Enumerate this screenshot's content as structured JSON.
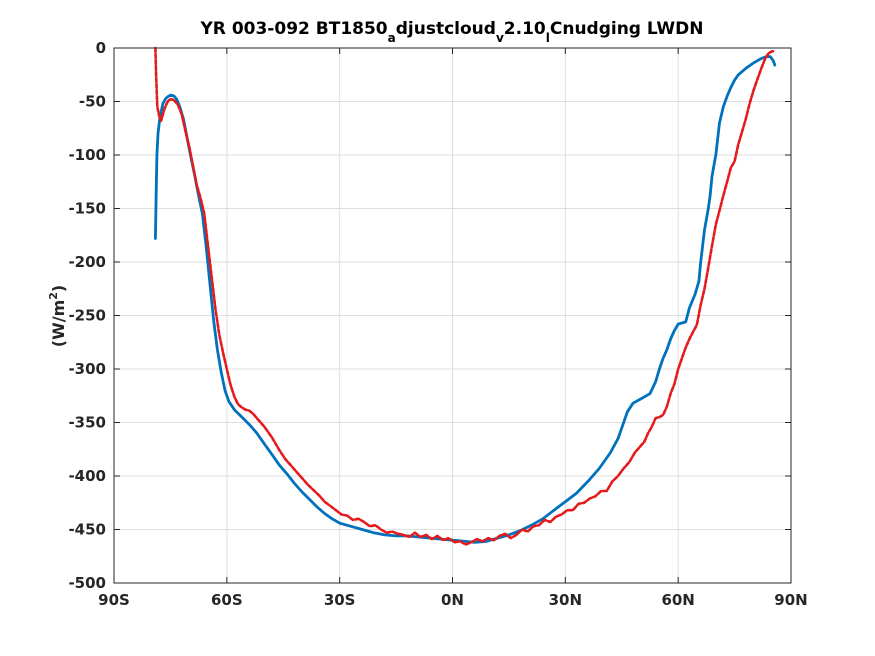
{
  "chart_data": {
    "type": "line",
    "title": {
      "parts": [
        {
          "text": "YR 003-092 BT1850",
          "sub": false
        },
        {
          "text": "a",
          "sub": true
        },
        {
          "text": "djustcloud",
          "sub": false
        },
        {
          "text": "v",
          "sub": true
        },
        {
          "text": "2.10",
          "sub": false
        },
        {
          "text": "l",
          "sub": true
        },
        {
          "text": "Cnudging LWDN",
          "sub": false
        }
      ]
    },
    "xlabel": "",
    "ylabel": {
      "base": "(W/m",
      "sup": "2",
      "close": ")"
    },
    "xlim": [
      -90,
      90
    ],
    "ylim": [
      -500,
      0
    ],
    "xticks": [
      {
        "value": -90,
        "label": "90S"
      },
      {
        "value": -60,
        "label": "60S"
      },
      {
        "value": -30,
        "label": "30S"
      },
      {
        "value": 0,
        "label": "0N"
      },
      {
        "value": 30,
        "label": "30N"
      },
      {
        "value": 60,
        "label": "60N"
      },
      {
        "value": 90,
        "label": "90N"
      }
    ],
    "yticks": [
      {
        "value": 0,
        "label": "0"
      },
      {
        "value": -50,
        "label": "-50"
      },
      {
        "value": -100,
        "label": "-100"
      },
      {
        "value": -150,
        "label": "-150"
      },
      {
        "value": -200,
        "label": "-200"
      },
      {
        "value": -250,
        "label": "-250"
      },
      {
        "value": -300,
        "label": "-300"
      },
      {
        "value": -350,
        "label": "-350"
      },
      {
        "value": -400,
        "label": "-400"
      },
      {
        "value": -450,
        "label": "-450"
      },
      {
        "value": -500,
        "label": "-500"
      }
    ],
    "grid": true,
    "series": [
      {
        "color": "#0072bd",
        "style": "solid",
        "x": [
          -79.0,
          -78.8,
          -78.6,
          -78.3,
          -77.8,
          -77.0,
          -76.2,
          -75.5,
          -74.8,
          -74.0,
          -73.3,
          -72.5,
          -71.5,
          -70.5,
          -69.5,
          -68.5,
          -67.5,
          -66.5,
          -65.5,
          -64.5,
          -63.5,
          -62.5,
          -61.5,
          -60.5,
          -59.5,
          -58.0,
          -56.0,
          -54.0,
          -52.0,
          -50.0,
          -48.0,
          -46.0,
          -44.0,
          -42.0,
          -40.0,
          -38.0,
          -36.0,
          -34.0,
          -32.0,
          -30.0,
          -27.0,
          -24.0,
          -21.0,
          -18.0,
          -15.0,
          -12.0,
          -9.0,
          -6.0,
          -3.0,
          0.0,
          3.0,
          6.0,
          9.0,
          12.0,
          15.0,
          18.0,
          21.0,
          24.0,
          27.0,
          30.0,
          33.0,
          36.0,
          39.0,
          42.0,
          44.0,
          45.0,
          46.5,
          48.0,
          50.0,
          51.5,
          52.5,
          54.0,
          55.0,
          56.0,
          57.0,
          58.0,
          59.0,
          60.0,
          61.0,
          62.0,
          63.0,
          64.5,
          65.5,
          66.0,
          67.0,
          68.0,
          68.5,
          69.0,
          70.0,
          71.0,
          72.0,
          73.0,
          74.0,
          75.0,
          76.0,
          78.0,
          80.0,
          82.0,
          83.5,
          84.5,
          85.3,
          85.7
        ],
        "y": [
          -178,
          -140,
          -100,
          -80,
          -65,
          -52,
          -47,
          -45,
          -44,
          -45,
          -48,
          -55,
          -67,
          -85,
          -103,
          -120,
          -138,
          -155,
          -185,
          -220,
          -255,
          -282,
          -303,
          -320,
          -330,
          -338,
          -345,
          -352,
          -360,
          -370,
          -380,
          -390,
          -398,
          -407,
          -415,
          -422,
          -429,
          -435,
          -440,
          -444,
          -447,
          -450,
          -453,
          -455,
          -456,
          -456,
          -457,
          -458,
          -459,
          -460,
          -461,
          -462,
          -461,
          -458,
          -455,
          -451,
          -446,
          -440,
          -432,
          -424,
          -416,
          -405,
          -393,
          -378,
          -365,
          -355,
          -340,
          -332,
          -328,
          -325,
          -323,
          -312,
          -300,
          -290,
          -282,
          -272,
          -264,
          -258,
          -257,
          -256,
          -243,
          -230,
          -218,
          -200,
          -170,
          -150,
          -138,
          -120,
          -100,
          -70,
          -55,
          -45,
          -37,
          -30,
          -25,
          -19,
          -14,
          -10,
          -8,
          -8,
          -12,
          -16
        ]
      },
      {
        "color": "#e41a1c",
        "style": "dashed",
        "x": [
          -79.0,
          -78.8,
          -78.5,
          -78.0,
          -77.5,
          -77.0,
          -76.5,
          -76.0,
          -75.5,
          -75.0,
          -74.5,
          -74.0,
          -73.0,
          -72.0,
          -71.0,
          -70.0,
          -69.0,
          -68.0,
          -67.0,
          -66.0,
          -65.0,
          -64.0,
          -63.0,
          -62.0,
          -61.0,
          -60.0,
          -59.0,
          -58.0,
          -57.0,
          -56.0,
          -55.0,
          -54.0,
          -53.0,
          -52.0,
          -51.0,
          -50.0,
          -49.0,
          -48.0,
          -47.0,
          -46.0,
          -44.5,
          -43.0,
          -41.5,
          -40.0,
          -38.5,
          -37.0,
          -35.5,
          -34.0,
          -32.5,
          -31.0,
          -29.5,
          -28.0,
          -26.5,
          -25.0,
          -23.5,
          -22.0,
          -20.5,
          -19.0,
          -17.5,
          -16.0,
          -14.5,
          -13.0,
          -11.5,
          -10.0,
          -8.5,
          -7.0,
          -5.5,
          -4.0,
          -2.5,
          -1.0,
          0.5,
          2.0,
          3.5,
          5.0,
          6.5,
          8.0,
          9.5,
          11.0,
          12.5,
          14.0,
          15.5,
          17.0,
          18.5,
          20.0,
          21.5,
          23.0,
          24.5,
          26.0,
          27.5,
          29.0,
          30.5,
          32.0,
          33.5,
          35.0,
          36.5,
          38.0,
          39.5,
          41.0,
          42.5,
          44.0,
          45.5,
          47.0,
          48.5,
          50.0,
          51.0,
          52.0,
          53.0,
          54.0,
          55.0,
          56.0,
          57.0,
          58.0,
          59.0,
          60.0,
          61.0,
          62.0,
          63.0,
          64.0,
          64.5,
          65.0,
          66.0,
          67.0,
          68.0,
          69.0,
          70.0,
          71.0,
          72.0,
          73.0,
          74.0,
          75.0,
          76.0,
          77.0,
          78.0,
          79.0,
          80.0,
          81.0,
          82.0,
          83.0,
          84.0,
          85.0,
          85.5
        ],
        "y": [
          0,
          -25,
          -55,
          -63,
          -68,
          -62,
          -56,
          -52,
          -49,
          -48,
          -48,
          -49,
          -53,
          -62,
          -78,
          -92,
          -110,
          -128,
          -140,
          -155,
          -185,
          -215,
          -245,
          -268,
          -285,
          -300,
          -315,
          -326,
          -333,
          -336,
          -338,
          -339,
          -342,
          -346,
          -350,
          -354,
          -359,
          -364,
          -370,
          -376,
          -384,
          -390,
          -396,
          -402,
          -408,
          -413,
          -418,
          -424,
          -428,
          -432,
          -436,
          -437,
          -441,
          -440,
          -443,
          -447,
          -446,
          -450,
          -453,
          -452,
          -454,
          -455,
          -457,
          -453,
          -457,
          -455,
          -459,
          -456,
          -460,
          -458,
          -462,
          -461,
          -464,
          -462,
          -459,
          -461,
          -458,
          -460,
          -456,
          -454,
          -458,
          -455,
          -450,
          -452,
          -447,
          -446,
          -441,
          -443,
          -438,
          -436,
          -432,
          -432,
          -426,
          -425,
          -421,
          -419,
          -414,
          -414,
          -405,
          -400,
          -393,
          -387,
          -378,
          -372,
          -368,
          -360,
          -354,
          -346,
          -345,
          -343,
          -335,
          -323,
          -314,
          -300,
          -290,
          -280,
          -272,
          -265,
          -262,
          -258,
          -240,
          -225,
          -205,
          -185,
          -165,
          -152,
          -138,
          -125,
          -112,
          -106,
          -90,
          -78,
          -66,
          -52,
          -40,
          -30,
          -20,
          -11,
          -5,
          -3,
          -3
        ]
      }
    ]
  }
}
